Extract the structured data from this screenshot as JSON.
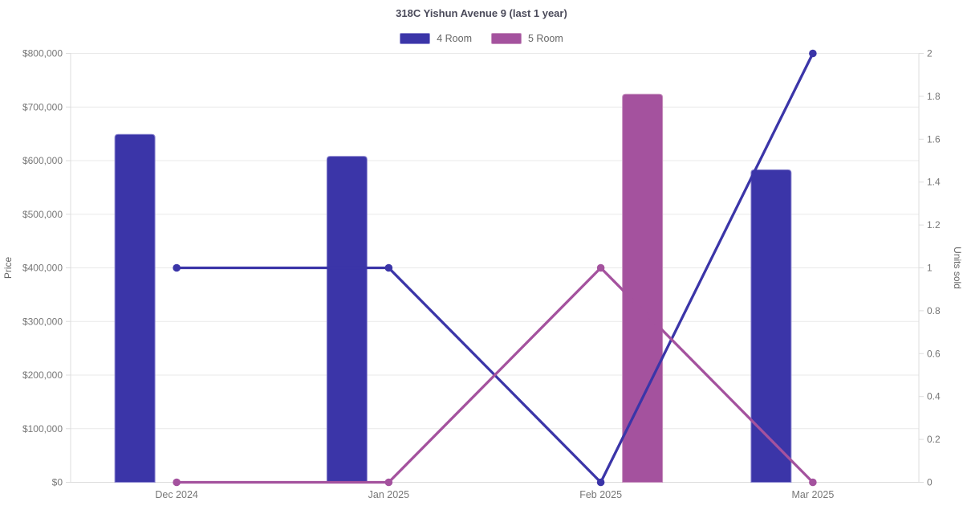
{
  "header": {
    "title": "318C Yishun Avenue 9 (last 1 year)"
  },
  "legend": {
    "items": [
      {
        "label": "4 Room",
        "color": "#3B35A8",
        "border": "#8e89d0"
      },
      {
        "label": "5 Room",
        "color": "#A4529E",
        "border": "#c793bf"
      }
    ]
  },
  "chart_data": {
    "type": "bar+line",
    "title": "318C Yishun Avenue 9 (last 1 year)",
    "categories": [
      "Dec 2024",
      "Jan 2025",
      "Feb 2025",
      "Mar 2025"
    ],
    "bar_series": [
      {
        "name": "4 Room",
        "axis": "price",
        "color": "#3B35A8",
        "border": "#8e89d0",
        "values": [
          649000,
          608000,
          null,
          583000
        ]
      },
      {
        "name": "5 Room",
        "axis": "price",
        "color": "#A4529E",
        "border": "#c793bf",
        "values": [
          null,
          null,
          724000,
          null
        ]
      }
    ],
    "line_series": [
      {
        "name": "4 Room",
        "axis": "units",
        "color": "#3B35A8",
        "values": [
          1,
          1,
          0,
          2
        ]
      },
      {
        "name": "5 Room",
        "axis": "units",
        "color": "#A4529E",
        "values": [
          0,
          0,
          1,
          0
        ]
      }
    ],
    "left_axis": {
      "label": "Price",
      "min": 0,
      "max": 800000,
      "tick_step": 100000,
      "tick_labels": [
        "$0",
        "$100,000",
        "$200,000",
        "$300,000",
        "$400,000",
        "$500,000",
        "$600,000",
        "$700,000",
        "$800,000"
      ]
    },
    "right_axis": {
      "label": "Units sold",
      "min": 0,
      "max": 2,
      "tick_step": 0.2,
      "tick_labels": [
        "0",
        "0.2",
        "0.4",
        "0.6",
        "0.8",
        "1",
        "1.2",
        "1.4",
        "1.6",
        "1.8",
        "2"
      ]
    },
    "grid": "horizontal",
    "legend_position": "top",
    "colors": {
      "gridline": "#e9e9e9",
      "axis_line": "#dddddd",
      "tick_text": "#777777",
      "axis_title_text": "#666666",
      "background": "#ffffff"
    }
  }
}
